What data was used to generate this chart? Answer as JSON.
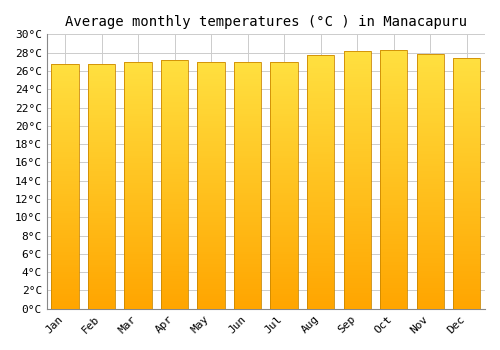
{
  "title": "Average monthly temperatures (°C ) in Manacapuru",
  "months": [
    "Jan",
    "Feb",
    "Mar",
    "Apr",
    "May",
    "Jun",
    "Jul",
    "Aug",
    "Sep",
    "Oct",
    "Nov",
    "Dec"
  ],
  "values": [
    26.8,
    26.8,
    27.0,
    27.2,
    27.0,
    27.0,
    27.0,
    27.7,
    28.2,
    28.3,
    27.8,
    27.4
  ],
  "bar_color_bottom": "#FFA500",
  "bar_color_top": "#FFE040",
  "bar_edge_color": "#CC8800",
  "ylim": [
    0,
    30
  ],
  "ytick_step": 2,
  "background_color": "#FFFFFF",
  "grid_color": "#CCCCCC",
  "title_fontsize": 10,
  "tick_fontsize": 8,
  "font_family": "monospace"
}
